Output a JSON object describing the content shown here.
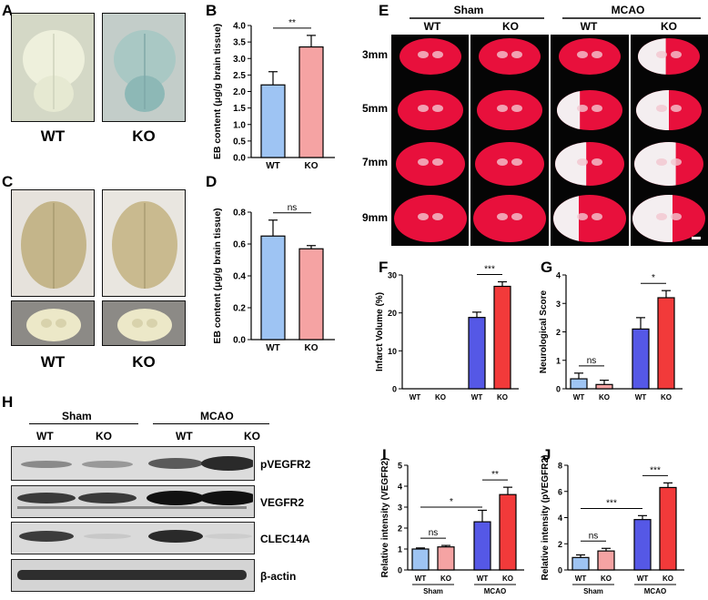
{
  "panels": {
    "A": "A",
    "B": "B",
    "C": "C",
    "D": "D",
    "E": "E",
    "F": "F",
    "G": "G",
    "H": "H",
    "I": "I",
    "J": "J"
  },
  "panelA": {
    "labels": [
      "WT",
      "KO"
    ]
  },
  "panelC": {
    "labels": [
      "WT",
      "KO"
    ]
  },
  "panelE": {
    "groups": [
      "Sham",
      "MCAO"
    ],
    "cols": [
      "WT",
      "KO",
      "WT",
      "KO"
    ],
    "rows": [
      "3mm",
      "5mm",
      "7mm",
      "9mm"
    ]
  },
  "panelH": {
    "groups": [
      "Sham",
      "MCAO"
    ],
    "cols": [
      "WT",
      "KO",
      "WT",
      "KO"
    ],
    "bands": [
      "pVEGFR2",
      "VEGFR2",
      "CLEC14A",
      "β-actin"
    ]
  },
  "colors": {
    "wt_light": "#9ec4f3",
    "ko_light": "#f5a3a3",
    "wt_dark": "#5558e6",
    "ko_dark": "#f23a3a",
    "tissue_red": "#e8103c"
  },
  "chart_data": [
    {
      "id": "B",
      "type": "bar",
      "categories": [
        "WT",
        "KO"
      ],
      "values": [
        2.2,
        3.35
      ],
      "errors": [
        0.4,
        0.35
      ],
      "ylabel": "EB content (μg/g brain tissue)",
      "ylim": [
        0,
        4.0
      ],
      "yticks": [
        "0.0",
        "0.5",
        "1.0",
        "1.5",
        "2.0",
        "2.5",
        "3.0",
        "3.5",
        "4.0"
      ],
      "significance": [
        {
          "from": 0,
          "to": 1,
          "label": "**"
        }
      ]
    },
    {
      "id": "D",
      "type": "bar",
      "categories": [
        "WT",
        "KO"
      ],
      "values": [
        0.65,
        0.57
      ],
      "errors": [
        0.1,
        0.02
      ],
      "ylabel": "EB content (μg/g brain tissue)",
      "ylim": [
        0,
        0.8
      ],
      "yticks": [
        "0.0",
        "0.2",
        "0.4",
        "0.6",
        "0.8"
      ],
      "significance": [
        {
          "from": 0,
          "to": 1,
          "label": "ns"
        }
      ]
    },
    {
      "id": "F",
      "type": "bar",
      "categories": [
        "WT",
        "KO",
        "WT",
        "KO"
      ],
      "groups": [
        "Sham",
        "MCAO"
      ],
      "values": [
        0,
        0,
        18.8,
        27.0
      ],
      "errors": [
        0,
        0,
        1.4,
        1.2
      ],
      "ylabel": "Infarct Volume (%)",
      "ylim": [
        0,
        30
      ],
      "yticks": [
        "0",
        "10",
        "20",
        "30"
      ],
      "significance": [
        {
          "from": 2,
          "to": 3,
          "label": "***"
        }
      ]
    },
    {
      "id": "G",
      "type": "bar",
      "categories": [
        "WT",
        "KO",
        "WT",
        "KO"
      ],
      "groups": [
        "Sham",
        "MCAO"
      ],
      "values": [
        0.35,
        0.15,
        2.1,
        3.2
      ],
      "errors": [
        0.2,
        0.15,
        0.4,
        0.25
      ],
      "ylabel": "Neurological Score",
      "ylim": [
        0,
        4
      ],
      "yticks": [
        "0",
        "1",
        "2",
        "3",
        "4"
      ],
      "significance": [
        {
          "from": 0,
          "to": 1,
          "label": "ns"
        },
        {
          "from": 2,
          "to": 3,
          "label": "*"
        }
      ]
    },
    {
      "id": "I",
      "type": "bar",
      "categories": [
        "WT",
        "KO",
        "WT",
        "KO"
      ],
      "groups": [
        "Sham",
        "MCAO"
      ],
      "values": [
        1.0,
        1.1,
        2.3,
        3.6
      ],
      "errors": [
        0.05,
        0.07,
        0.55,
        0.35
      ],
      "ylabel": "Relative intensity (VEGFR2)",
      "ylim": [
        0,
        5
      ],
      "yticks": [
        "0",
        "1",
        "2",
        "3",
        "4",
        "5"
      ],
      "significance": [
        {
          "from": 0,
          "to": 1,
          "label": "ns"
        },
        {
          "from": 0,
          "to": 2,
          "label": "*"
        },
        {
          "from": 2,
          "to": 3,
          "label": "**"
        }
      ]
    },
    {
      "id": "J",
      "type": "bar",
      "categories": [
        "WT",
        "KO",
        "WT",
        "KO"
      ],
      "groups": [
        "Sham",
        "MCAO"
      ],
      "values": [
        0.95,
        1.45,
        3.85,
        6.3
      ],
      "errors": [
        0.2,
        0.2,
        0.3,
        0.35
      ],
      "ylabel": "Relative intensity (pVEGFR2)",
      "ylim": [
        0,
        8
      ],
      "yticks": [
        "0",
        "2",
        "4",
        "6",
        "8"
      ],
      "significance": [
        {
          "from": 0,
          "to": 1,
          "label": "ns"
        },
        {
          "from": 0,
          "to": 2,
          "label": "***"
        },
        {
          "from": 2,
          "to": 3,
          "label": "***"
        }
      ]
    }
  ]
}
